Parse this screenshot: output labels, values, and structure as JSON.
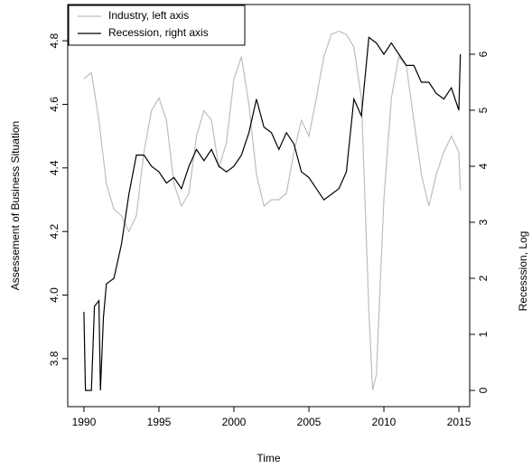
{
  "chart_data": {
    "type": "line",
    "x_label": "Time",
    "y_label": "Assessement of Business Situation",
    "y2_label": "Recesssion, Log",
    "xlim": [
      1988.92,
      2015.72
    ],
    "ylim": [
      3.649,
      4.914
    ],
    "y2lim": [
      -0.29,
      6.887
    ],
    "xticks": [
      1990,
      1995,
      2000,
      2005,
      2010,
      2015
    ],
    "yticks": [
      3.8,
      {
        "value": 4,
        "label": "4.0"
      },
      4.2,
      4.4,
      4.6,
      4.8
    ],
    "y2ticks": [
      0,
      1,
      2,
      3,
      4,
      5,
      6
    ],
    "legend_position": "top-left",
    "series": [
      {
        "name": "Industry, left axis",
        "color": "#bebebe",
        "axis": "y",
        "x": [
          1990,
          1990.5,
          1991,
          1991.5,
          1992,
          1992.5,
          1993,
          1993.5,
          1994,
          1994.5,
          1995,
          1995.5,
          1996,
          1996.5,
          1997,
          1997.5,
          1998,
          1998.5,
          1999,
          1999.5,
          2000,
          2000.5,
          2001,
          2001.5,
          2002,
          2002.5,
          2003,
          2003.5,
          2004,
          2004.5,
          2005,
          2005.5,
          2006,
          2006.5,
          2007,
          2007.5,
          2008,
          2008.5,
          2009,
          2009.25,
          2009.5,
          2010,
          2010.5,
          2011,
          2011.5,
          2012,
          2012.5,
          2013,
          2013.5,
          2014,
          2014.5,
          2015,
          2015.1
        ],
        "values": [
          4.68,
          4.7,
          4.55,
          4.35,
          4.27,
          4.25,
          4.2,
          4.25,
          4.45,
          4.58,
          4.62,
          4.55,
          4.35,
          4.28,
          4.32,
          4.5,
          4.58,
          4.55,
          4.4,
          4.48,
          4.68,
          4.75,
          4.6,
          4.38,
          4.28,
          4.3,
          4.3,
          4.32,
          4.45,
          4.55,
          4.5,
          4.62,
          4.75,
          4.82,
          4.83,
          4.82,
          4.78,
          4.62,
          3.95,
          3.7,
          3.75,
          4.3,
          4.62,
          4.75,
          4.72,
          4.55,
          4.38,
          4.28,
          4.38,
          4.45,
          4.5,
          4.45,
          4.33
        ]
      },
      {
        "name": "Recession, right axis",
        "color": "#000000",
        "axis": "y2",
        "x": [
          1990,
          1990.1,
          1990.5,
          1990.7,
          1991,
          1991.1,
          1991.3,
          1991.5,
          1992,
          1992.5,
          1993,
          1993.5,
          1994,
          1994.5,
          1995,
          1995.5,
          1996,
          1996.5,
          1997,
          1997.5,
          1998,
          1998.5,
          1999,
          1999.5,
          2000,
          2000.5,
          2001,
          2001.5,
          2002,
          2002.5,
          2003,
          2003.5,
          2004,
          2004.5,
          2005,
          2005.5,
          2006,
          2006.5,
          2007,
          2007.5,
          2008,
          2008.5,
          2009,
          2009.5,
          2010,
          2010.5,
          2011,
          2011.5,
          2012,
          2012.5,
          2013,
          2013.5,
          2014,
          2014.5,
          2015,
          2015.1
        ],
        "values": [
          1.4,
          0,
          0,
          1.5,
          1.6,
          0,
          1.3,
          1.9,
          2.0,
          2.6,
          3.5,
          4.2,
          4.2,
          4.0,
          3.9,
          3.7,
          3.8,
          3.6,
          4.0,
          4.3,
          4.1,
          4.3,
          4.0,
          3.9,
          4.0,
          4.2,
          4.6,
          5.2,
          4.7,
          4.6,
          4.3,
          4.6,
          4.4,
          3.9,
          3.8,
          3.6,
          3.4,
          3.5,
          3.6,
          3.9,
          5.2,
          4.9,
          6.3,
          6.2,
          6.0,
          6.2,
          6.0,
          5.8,
          5.8,
          5.5,
          5.5,
          5.3,
          5.2,
          5.4,
          5.0,
          6.0
        ]
      }
    ]
  }
}
